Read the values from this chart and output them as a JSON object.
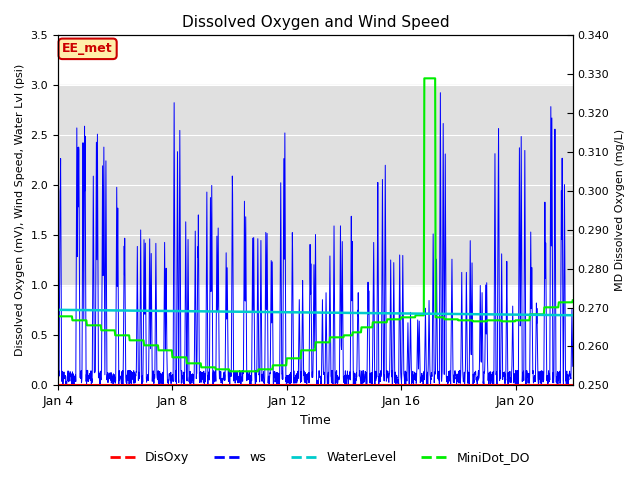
{
  "title": "Dissolved Oxygen and Wind Speed",
  "xlabel": "Time",
  "ylabel_left": "Dissolved Oxygen (mV), Wind Speed, Water Lvl (psi)",
  "ylabel_right": "MD Dissolved Oxygen (mg/L)",
  "ylim_left": [
    0.0,
    3.5
  ],
  "ylim_right": [
    0.25,
    0.34
  ],
  "bg_band_y1": 1.0,
  "bg_band_y2": 3.0,
  "annotation_text": "EE_met",
  "annotation_color": "#cc0000",
  "annotation_box_color": "#ffeeaa",
  "x_ticks_labels": [
    "Jan 4",
    "Jan 8",
    "Jan 12",
    "Jan 16",
    "Jan 20"
  ],
  "x_ticks_positions": [
    0,
    4,
    8,
    12,
    16
  ],
  "x_range": [
    0,
    18
  ],
  "colors": {
    "DisOxy": "#ff0000",
    "ws": "#0000ff",
    "WaterLevel": "#00cccc",
    "MiniDot_DO": "#00ee00"
  },
  "legend_entries": [
    "DisOxy",
    "ws",
    "WaterLevel",
    "MiniDot_DO"
  ],
  "figsize": [
    6.4,
    4.8
  ],
  "dpi": 100
}
